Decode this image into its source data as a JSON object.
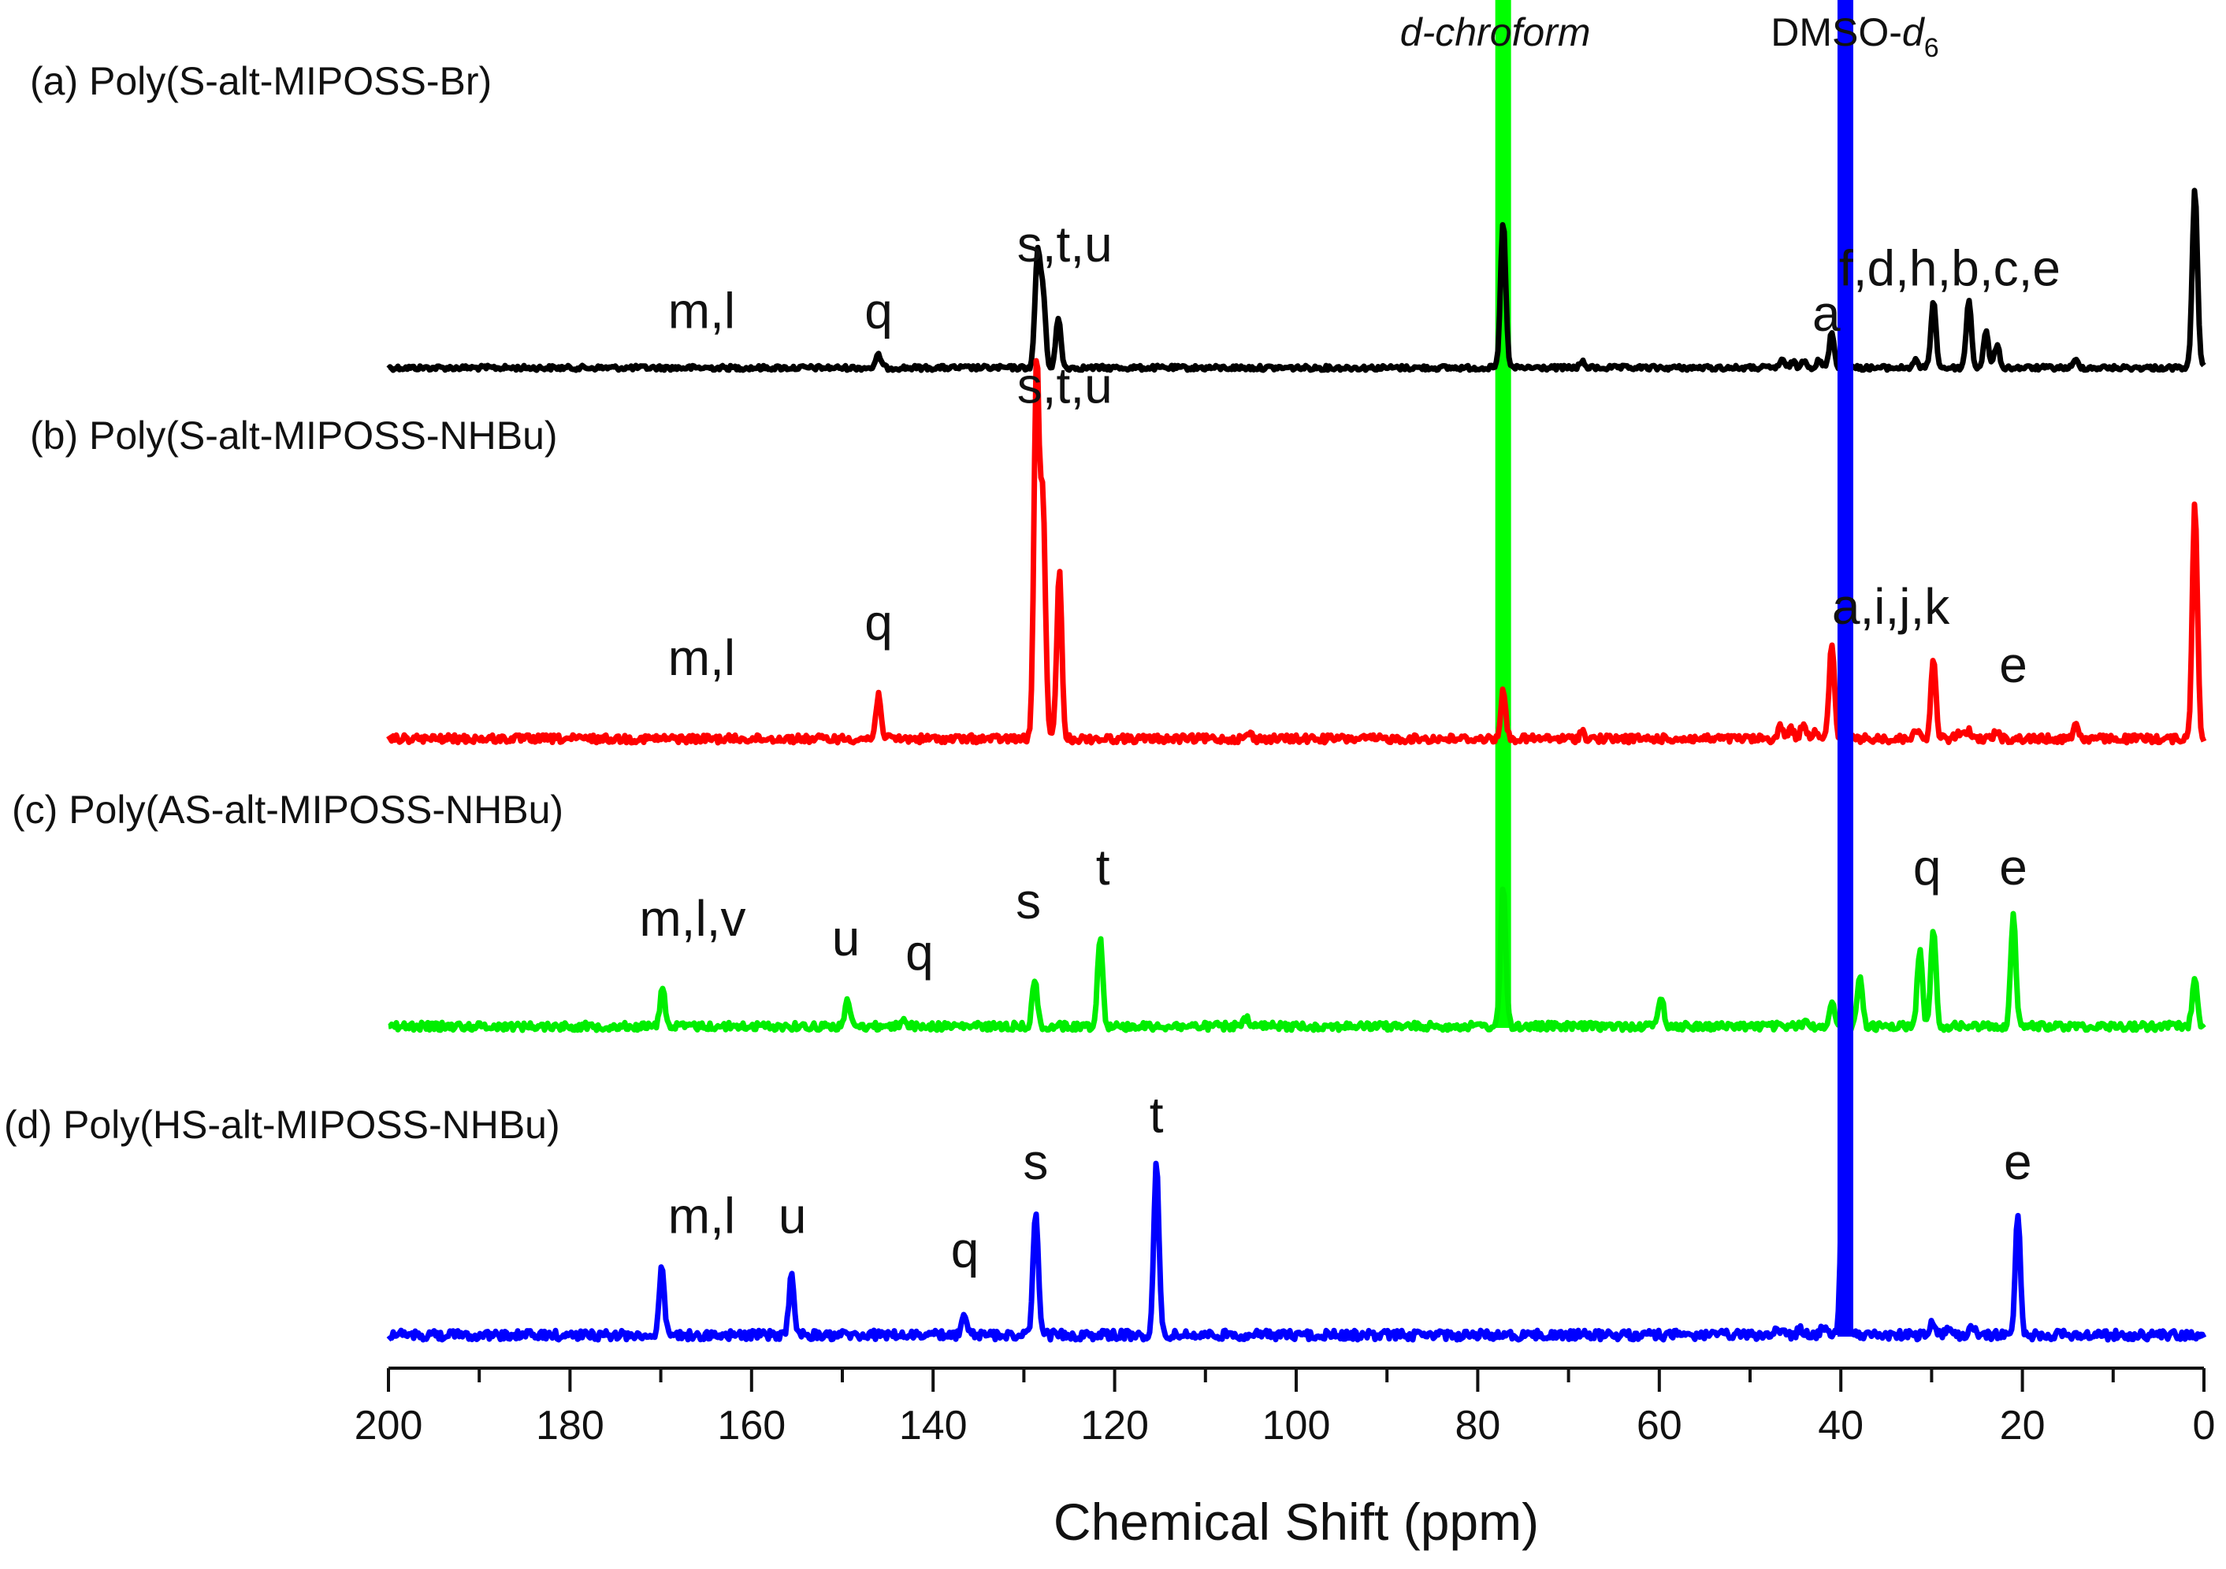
{
  "chart_data": {
    "type": "line",
    "title": "",
    "xlabel": "Chemical Shift (ppm)",
    "ylabel": "",
    "xlim": [
      200,
      0
    ],
    "x_reversed": true,
    "x_ticks": [
      200,
      180,
      160,
      140,
      120,
      100,
      80,
      60,
      40,
      20,
      0
    ],
    "x_tick_labels": [
      "200",
      "180",
      "160",
      "140",
      "120",
      "100",
      "80",
      "60",
      "40",
      "20",
      "0"
    ],
    "minor_tick_step": 10,
    "solvents": [
      {
        "name": "d-chroform",
        "name_plain": "",
        "name_italic": "d-chroform",
        "sub": "",
        "ppm": 77.2,
        "color": "#00ff00",
        "top_level": 1.08,
        "series_index": 2
      },
      {
        "name": "DMSO-d6",
        "name_plain": "DMSO-",
        "name_italic": "d",
        "sub": "6",
        "ppm": 39.5,
        "color": "#0000ff",
        "top_level": 1.08,
        "series_index": 3
      }
    ],
    "series": [
      {
        "name": "(a) Poly(S-alt-MIPOSS-Br)",
        "color": "#000000",
        "peaks": [
          {
            "ppm": 146.0,
            "height": 0.09
          },
          {
            "ppm": 128.5,
            "height": 0.79
          },
          {
            "ppm": 127.9,
            "height": 0.52
          },
          {
            "ppm": 126.2,
            "height": 0.35
          },
          {
            "ppm": 77.2,
            "height": 1.04
          },
          {
            "ppm": 68.5,
            "height": 0.04
          },
          {
            "ppm": 46.5,
            "height": 0.05
          },
          {
            "ppm": 45.3,
            "height": 0.04
          },
          {
            "ppm": 44.0,
            "height": 0.06
          },
          {
            "ppm": 42.4,
            "height": 0.05
          },
          {
            "ppm": 41.0,
            "height": 0.25
          },
          {
            "ppm": 31.8,
            "height": 0.05
          },
          {
            "ppm": 29.8,
            "height": 0.47
          },
          {
            "ppm": 25.9,
            "height": 0.48
          },
          {
            "ppm": 24.0,
            "height": 0.25
          },
          {
            "ppm": 22.8,
            "height": 0.16
          },
          {
            "ppm": 14.1,
            "height": 0.05
          },
          {
            "ppm": 1.0,
            "height": 1.28
          }
        ],
        "annotations": [
          {
            "text": "m,l",
            "ppm": 165.5,
            "height": 0.28
          },
          {
            "text": "q",
            "ppm": 146.0,
            "height": 0.28
          },
          {
            "text": "s,t,u",
            "ppm": 125.5,
            "height": 0.75
          },
          {
            "text": "a",
            "ppm": 41.6,
            "height": 0.26
          },
          {
            "text": "f,d,h,b,c,e",
            "ppm": 28.0,
            "height": 0.58
          }
        ]
      },
      {
        "name": "(b) Poly(S-alt-MIPOSS-NHBu)",
        "color": "#ff0000",
        "peaks": [
          {
            "ppm": 146.0,
            "height": 0.32
          },
          {
            "ppm": 128.6,
            "height": 2.68
          },
          {
            "ppm": 127.9,
            "height": 1.66
          },
          {
            "ppm": 126.1,
            "height": 1.18
          },
          {
            "ppm": 105.2,
            "height": 0.04
          },
          {
            "ppm": 77.2,
            "height": 0.33
          },
          {
            "ppm": 68.5,
            "height": 0.05
          },
          {
            "ppm": 46.6,
            "height": 0.09
          },
          {
            "ppm": 45.5,
            "height": 0.08
          },
          {
            "ppm": 44.1,
            "height": 0.12
          },
          {
            "ppm": 42.8,
            "height": 0.07
          },
          {
            "ppm": 41.0,
            "height": 0.68
          },
          {
            "ppm": 31.8,
            "height": 0.08
          },
          {
            "ppm": 29.8,
            "height": 0.55
          },
          {
            "ppm": 27.1,
            "height": 0.05
          },
          {
            "ppm": 26.0,
            "height": 0.06
          },
          {
            "ppm": 22.8,
            "height": 0.06
          },
          {
            "ppm": 14.1,
            "height": 0.11
          },
          {
            "ppm": 1.0,
            "height": 1.68
          }
        ],
        "annotations": [
          {
            "text": "m,l",
            "ppm": 165.5,
            "height": 0.45
          },
          {
            "text": "q",
            "ppm": 146.0,
            "height": 0.7
          },
          {
            "text": "s,t,u",
            "ppm": 125.5,
            "height": 2.37
          },
          {
            "text": "a,i,j,k",
            "ppm": 34.5,
            "height": 0.81
          },
          {
            "text": "e",
            "ppm": 21.0,
            "height": 0.4
          }
        ]
      },
      {
        "name": "(c) Poly(AS-alt-MIPOSS-NHBu)",
        "color": "#00ee00",
        "peaks": [
          {
            "ppm": 169.8,
            "height": 0.27
          },
          {
            "ppm": 149.4,
            "height": 0.18
          },
          {
            "ppm": 143.3,
            "height": 0.06
          },
          {
            "ppm": 128.8,
            "height": 0.32
          },
          {
            "ppm": 121.6,
            "height": 0.64
          },
          {
            "ppm": 105.5,
            "height": 0.05
          },
          {
            "ppm": 77.2,
            "height": 1.0
          },
          {
            "ppm": 59.8,
            "height": 0.22
          },
          {
            "ppm": 44.0,
            "height": 0.03
          },
          {
            "ppm": 41.0,
            "height": 0.18
          },
          {
            "ppm": 37.9,
            "height": 0.36
          },
          {
            "ppm": 31.3,
            "height": 0.55
          },
          {
            "ppm": 29.8,
            "height": 0.68
          },
          {
            "ppm": 21.0,
            "height": 0.78
          },
          {
            "ppm": 1.0,
            "height": 0.36
          }
        ],
        "annotations": [
          {
            "text": "m,l,v",
            "ppm": 166.5,
            "height": 0.64
          },
          {
            "text": "u",
            "ppm": 149.6,
            "height": 0.5
          },
          {
            "text": "q",
            "ppm": 141.5,
            "height": 0.4
          },
          {
            "text": "s",
            "ppm": 129.5,
            "height": 0.76
          },
          {
            "text": "t",
            "ppm": 121.3,
            "height": 1.0
          },
          {
            "text": "q",
            "ppm": 30.5,
            "height": 1.0
          },
          {
            "text": "e",
            "ppm": 21.0,
            "height": 1.0
          }
        ]
      },
      {
        "name": "(d) Poly(HS-alt-MIPOSS-NHBu)",
        "color": "#0000ff",
        "peaks": [
          {
            "ppm": 169.9,
            "height": 0.47
          },
          {
            "ppm": 155.6,
            "height": 0.43
          },
          {
            "ppm": 136.6,
            "height": 0.12
          },
          {
            "ppm": 128.7,
            "height": 0.88
          },
          {
            "ppm": 115.4,
            "height": 1.2
          },
          {
            "ppm": 47.0,
            "height": 0.06
          },
          {
            "ppm": 44.5,
            "height": 0.05
          },
          {
            "ppm": 42.0,
            "height": 0.05
          },
          {
            "ppm": 39.7,
            "height": 1.55
          },
          {
            "ppm": 30.0,
            "height": 0.09
          },
          {
            "ppm": 28.3,
            "height": 0.05
          },
          {
            "ppm": 25.5,
            "height": 0.05
          },
          {
            "ppm": 20.5,
            "height": 0.86
          }
        ],
        "annotations": [
          {
            "text": "m,l",
            "ppm": 165.5,
            "height": 0.72
          },
          {
            "text": "u",
            "ppm": 155.5,
            "height": 0.72
          },
          {
            "text": "q",
            "ppm": 136.5,
            "height": 0.48
          },
          {
            "text": "s",
            "ppm": 128.7,
            "height": 1.1
          },
          {
            "text": "t",
            "ppm": 115.4,
            "height": 1.43
          },
          {
            "text": "e",
            "ppm": 20.5,
            "height": 1.1
          }
        ]
      }
    ]
  }
}
